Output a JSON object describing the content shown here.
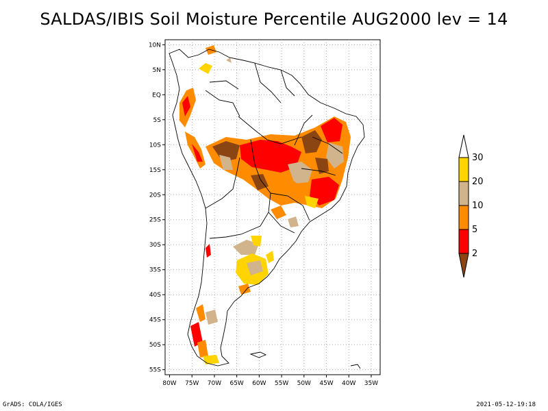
{
  "title": "SALDAS/IBIS Soil Moisture Percentile AUG2000 lev = 14",
  "footer": {
    "left": "GrADS: COLA/IGES",
    "right": "2021-05-12-19:18"
  },
  "map": {
    "lat_labels": [
      "10N",
      "5N",
      "EQ",
      "5S",
      "10S",
      "15S",
      "20S",
      "25S",
      "30S",
      "35S",
      "40S",
      "45S",
      "50S",
      "55S"
    ],
    "lon_labels": [
      "80W",
      "75W",
      "70W",
      "65W",
      "60W",
      "55W",
      "50W",
      "45W",
      "40W",
      "35W"
    ],
    "lat_min": -56,
    "lat_max": 11,
    "lon_min": -81,
    "lon_max": -33
  },
  "legend": {
    "labels": [
      "30",
      "20",
      "10",
      "5",
      "2"
    ],
    "colors": [
      "#ffffff",
      "#ffd400",
      "#d2b48c",
      "#ff8c00",
      "#ff0000",
      "#8b4513"
    ]
  }
}
